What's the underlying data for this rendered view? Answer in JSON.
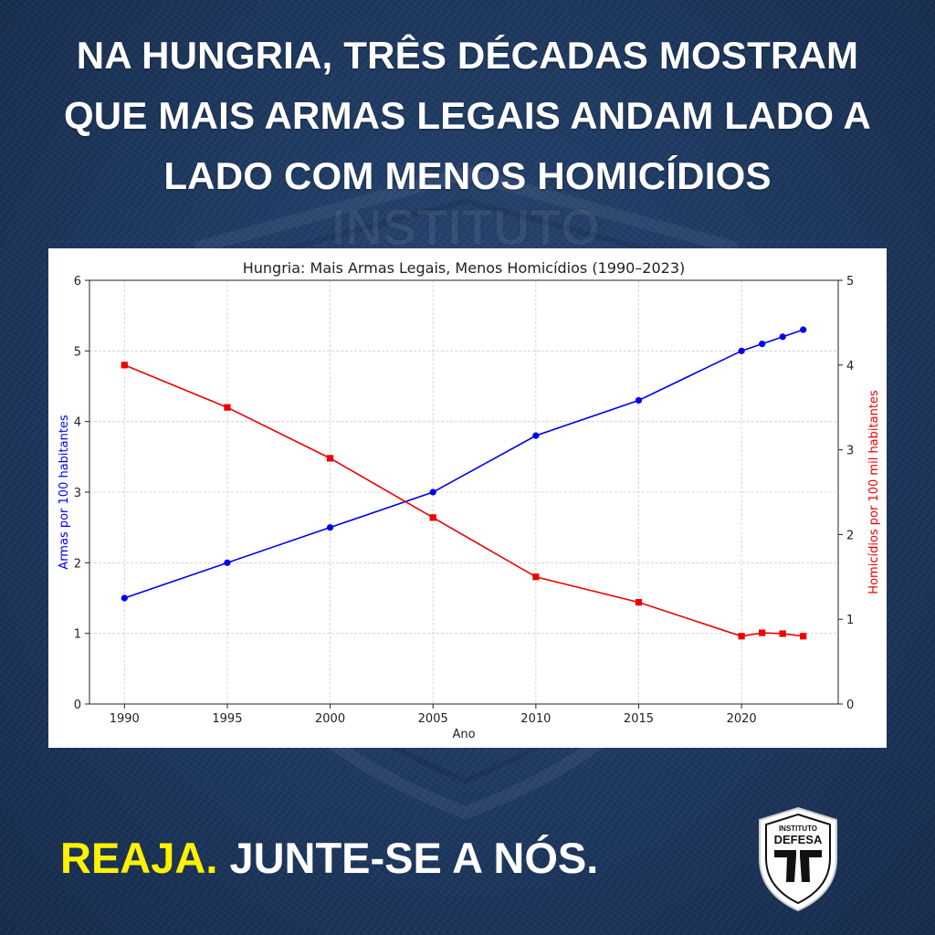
{
  "headline": {
    "line1": "NA HUNGRIA, TRÊS DÉCADAS MOSTRAM",
    "line2": "QUE MAIS ARMAS LEGAIS ANDAM LADO A",
    "line3": "LADO COM MENOS HOMICÍDIOS"
  },
  "cta": {
    "highlight": "REAJA.",
    "rest": "JUNTE-SE A NÓS."
  },
  "logo": {
    "top_text": "INSTITUTO",
    "name": "DEFESA",
    "icon": "pistols-shield-icon"
  },
  "background_watermark": {
    "text": "INSTITUTO"
  },
  "colors": {
    "background": "#1f3a63",
    "series_guns": "#0000ee",
    "series_homicides": "#ee0000",
    "cta_highlight": "#fff200"
  },
  "chart_data": {
    "type": "line",
    "title": "Hungria: Mais Armas Legais, Menos Homicídios (1990–2023)",
    "xlabel": "Ano",
    "ylabel_left": "Armas por 100 habitantes",
    "ylabel_right": "Homicídios por 100 mil habitantes",
    "xlim": [
      1988.3,
      2024.7
    ],
    "ylim_left": [
      0,
      6
    ],
    "ylim_right": [
      0,
      5
    ],
    "x_ticks": [
      1990,
      1995,
      2000,
      2005,
      2010,
      2015,
      2020
    ],
    "y_ticks_left": [
      0,
      1,
      2,
      3,
      4,
      5,
      6
    ],
    "y_ticks_right": [
      0,
      1,
      2,
      3,
      4,
      5
    ],
    "grid": true,
    "series": [
      {
        "axis": "left",
        "marker": "circle",
        "color": "#0000ee",
        "x": [
          1990,
          1995,
          2000,
          2005,
          2010,
          2015,
          2020,
          2021,
          2022,
          2023
        ],
        "y": [
          1.5,
          2.0,
          2.5,
          3.0,
          3.8,
          4.3,
          5.0,
          5.1,
          5.2,
          5.3
        ]
      },
      {
        "axis": "right",
        "marker": "square",
        "color": "#ee0000",
        "x": [
          1990,
          1995,
          2000,
          2005,
          2010,
          2015,
          2020,
          2021,
          2022,
          2023
        ],
        "y": [
          4.0,
          3.5,
          2.9,
          2.2,
          1.5,
          1.2,
          0.8,
          0.84,
          0.83,
          0.8
        ]
      }
    ]
  }
}
